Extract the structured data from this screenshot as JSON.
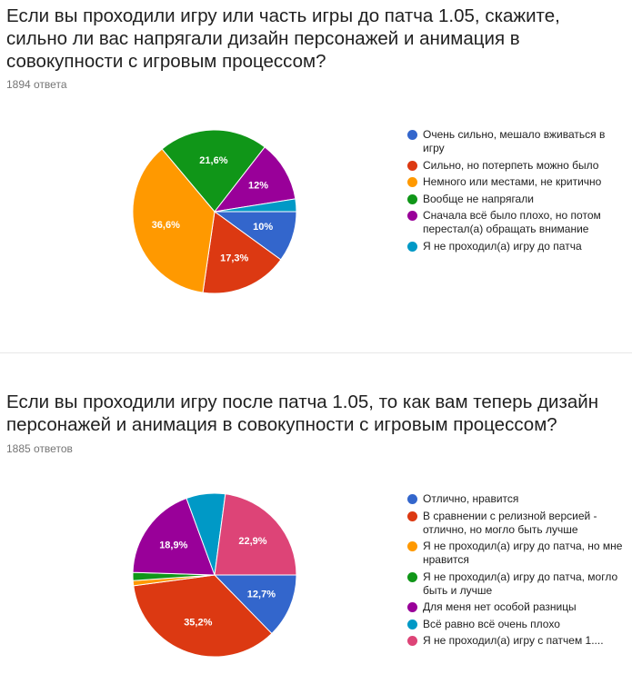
{
  "charts": [
    {
      "title": "Если вы проходили игру или часть игры до патча 1.05, скажите, сильно ли вас напрягали дизайн персонажей и анимация в совокупности с игровым процессом?",
      "responses": "1894 ответа"
    },
    {
      "title": "Если вы проходили игру после патча 1.05, то как вам теперь дизайн персонажей и анимация в совокупности с игровым процессом?",
      "responses": "1885 ответов"
    }
  ],
  "chart_data": [
    {
      "type": "pie",
      "title": "Если вы проходили игру или часть игры до патча 1.05, скажите, сильно ли вас напрягали дизайн персонажей и анимация в совокупности с игровым процессом?",
      "legend_position": "right",
      "series": [
        {
          "name": "Очень сильно, мешало вживаться в игру",
          "value": 10.0,
          "label": "10%",
          "color": "#3366cc"
        },
        {
          "name": "Сильно, но потерпеть можно было",
          "value": 17.3,
          "label": "17,3%",
          "color": "#dc3912"
        },
        {
          "name": "Немного или местами, не критично",
          "value": 36.6,
          "label": "36,6%",
          "color": "#ff9900"
        },
        {
          "name": "Вообще не напрягали",
          "value": 21.6,
          "label": "21,6%",
          "color": "#109618"
        },
        {
          "name": "Сначала всё было плохо, но потом перестал(а) обращать внимание",
          "value": 12.0,
          "label": "12%",
          "color": "#990099"
        },
        {
          "name": "Я не проходил(а) игру до патча",
          "value": 2.5,
          "label": "",
          "color": "#0099c6"
        }
      ]
    },
    {
      "type": "pie",
      "title": "Если вы проходили игру после патча 1.05, то как вам теперь дизайн персонажей и анимация в совокупности с игровым процессом?",
      "legend_position": "right",
      "series": [
        {
          "name": "Отлично, нравится",
          "value": 12.7,
          "label": "12,7%",
          "color": "#3366cc"
        },
        {
          "name": "В сравнении с релизной версией - отлично, но могло быть лучше",
          "value": 35.2,
          "label": "35,2%",
          "color": "#dc3912"
        },
        {
          "name": "Я не проходил(а) игру до патча, но мне нравится",
          "value": 1.0,
          "label": "",
          "color": "#ff9900"
        },
        {
          "name": "Я не проходил(а) игру до патча, могло быть и лучше",
          "value": 1.6,
          "label": "",
          "color": "#109618"
        },
        {
          "name": "Для меня нет особой разницы",
          "value": 18.9,
          "label": "18,9%",
          "color": "#990099"
        },
        {
          "name": "Всё равно всё очень плохо",
          "value": 7.7,
          "label": "",
          "color": "#0099c6"
        },
        {
          "name": "Я не проходил(а) игру с патчем 1....",
          "value": 22.9,
          "label": "22,9%",
          "color": "#dd4477"
        }
      ]
    }
  ]
}
